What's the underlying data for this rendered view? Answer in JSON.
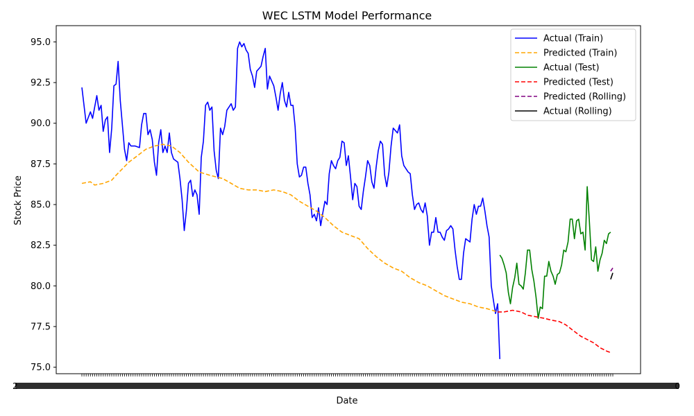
{
  "chart_data": {
    "type": "line",
    "title": "WEC LSTM Model Performance",
    "xlabel": "Date",
    "ylabel": "Stock Price",
    "ylim": [
      74.6,
      96.0
    ],
    "yticks": [
      75.0,
      77.5,
      80.0,
      82.5,
      85.0,
      87.5,
      90.0,
      92.5,
      95.0
    ],
    "x_tick_note": "x-axis tick labels are dense overlapping date strings and are not legible",
    "x_tick_label_left": "2",
    "x_tick_label_right": "0",
    "legend_position": "top-right",
    "grid": false,
    "series": [
      {
        "name": "Actual (Train)",
        "color": "#0000ff",
        "dash": "solid",
        "points": [
          [
            0,
            92.2
          ],
          [
            2,
            90.0
          ],
          [
            4,
            90.7
          ],
          [
            5,
            90.3
          ],
          [
            7,
            91.7
          ],
          [
            8,
            90.8
          ],
          [
            9,
            91.1
          ],
          [
            10,
            89.5
          ],
          [
            11,
            90.2
          ],
          [
            12,
            90.4
          ],
          [
            13,
            88.2
          ],
          [
            14,
            89.7
          ],
          [
            15,
            92.3
          ],
          [
            16,
            92.4
          ],
          [
            17,
            93.8
          ],
          [
            18,
            91.4
          ],
          [
            20,
            88.4
          ],
          [
            21,
            87.7
          ],
          [
            22,
            88.8
          ],
          [
            23,
            88.6
          ],
          [
            25,
            88.6
          ],
          [
            27,
            88.5
          ],
          [
            28,
            89.9
          ],
          [
            29,
            90.6
          ],
          [
            30,
            90.6
          ],
          [
            31,
            89.3
          ],
          [
            32,
            89.6
          ],
          [
            33,
            89.0
          ],
          [
            34,
            87.6
          ],
          [
            35,
            86.8
          ],
          [
            36,
            88.8
          ],
          [
            37,
            89.6
          ],
          [
            38,
            88.2
          ],
          [
            39,
            88.6
          ],
          [
            40,
            88.2
          ],
          [
            41,
            89.4
          ],
          [
            42,
            88.2
          ],
          [
            43,
            87.8
          ],
          [
            45,
            87.6
          ],
          [
            46,
            86.6
          ],
          [
            47,
            85.3
          ],
          [
            48,
            83.4
          ],
          [
            49,
            84.6
          ],
          [
            50,
            86.3
          ],
          [
            51,
            86.5
          ],
          [
            52,
            85.5
          ],
          [
            53,
            85.9
          ],
          [
            54,
            85.6
          ],
          [
            55,
            84.4
          ],
          [
            56,
            87.9
          ],
          [
            57,
            88.9
          ],
          [
            58,
            91.1
          ],
          [
            59,
            91.3
          ],
          [
            60,
            90.8
          ],
          [
            61,
            91.0
          ],
          [
            62,
            88.3
          ],
          [
            63,
            87.1
          ],
          [
            64,
            86.6
          ],
          [
            65,
            89.7
          ],
          [
            66,
            89.3
          ],
          [
            67,
            89.8
          ],
          [
            68,
            90.8
          ],
          [
            69,
            91.0
          ],
          [
            70,
            91.2
          ],
          [
            71,
            90.8
          ],
          [
            72,
            91.0
          ],
          [
            73,
            94.6
          ],
          [
            74,
            95.0
          ],
          [
            75,
            94.7
          ],
          [
            76,
            94.9
          ],
          [
            77,
            94.5
          ],
          [
            78,
            94.3
          ],
          [
            79,
            93.3
          ],
          [
            80,
            92.9
          ],
          [
            81,
            92.2
          ],
          [
            82,
            93.2
          ],
          [
            84,
            93.5
          ],
          [
            85,
            94.1
          ],
          [
            86,
            94.6
          ],
          [
            87,
            92.1
          ],
          [
            88,
            92.9
          ],
          [
            90,
            92.3
          ],
          [
            91,
            91.6
          ],
          [
            92,
            90.8
          ],
          [
            93,
            91.8
          ],
          [
            94,
            92.5
          ],
          [
            95,
            91.4
          ],
          [
            96,
            91.0
          ],
          [
            97,
            91.9
          ],
          [
            98,
            91.1
          ],
          [
            99,
            91.1
          ],
          [
            100,
            89.8
          ],
          [
            101,
            87.5
          ],
          [
            102,
            86.7
          ],
          [
            103,
            86.8
          ],
          [
            104,
            87.3
          ],
          [
            105,
            87.3
          ],
          [
            106,
            86.3
          ],
          [
            107,
            85.6
          ],
          [
            108,
            84.2
          ],
          [
            109,
            84.4
          ],
          [
            110,
            84.0
          ],
          [
            111,
            84.8
          ],
          [
            112,
            83.7
          ],
          [
            113,
            84.5
          ],
          [
            114,
            85.2
          ],
          [
            115,
            85.0
          ],
          [
            116,
            86.9
          ],
          [
            117,
            87.7
          ],
          [
            118,
            87.4
          ],
          [
            119,
            87.2
          ],
          [
            120,
            87.7
          ],
          [
            121,
            87.9
          ],
          [
            122,
            88.9
          ],
          [
            123,
            88.8
          ],
          [
            124,
            87.4
          ],
          [
            125,
            88.0
          ],
          [
            126,
            86.7
          ],
          [
            127,
            85.3
          ],
          [
            128,
            86.3
          ],
          [
            129,
            86.1
          ],
          [
            130,
            84.9
          ],
          [
            131,
            84.7
          ],
          [
            132,
            85.8
          ],
          [
            133,
            86.7
          ],
          [
            134,
            87.7
          ],
          [
            135,
            87.4
          ],
          [
            136,
            86.4
          ],
          [
            137,
            86.0
          ],
          [
            138,
            87.3
          ],
          [
            139,
            88.3
          ],
          [
            140,
            88.9
          ],
          [
            141,
            88.7
          ],
          [
            142,
            86.8
          ],
          [
            143,
            86.1
          ],
          [
            144,
            87.0
          ],
          [
            145,
            88.6
          ],
          [
            146,
            89.7
          ],
          [
            148,
            89.4
          ],
          [
            149,
            89.9
          ],
          [
            150,
            88.0
          ],
          [
            151,
            87.4
          ],
          [
            153,
            87.0
          ],
          [
            154,
            86.9
          ],
          [
            155,
            85.6
          ],
          [
            156,
            84.7
          ],
          [
            157,
            85.0
          ],
          [
            158,
            85.1
          ],
          [
            159,
            84.7
          ],
          [
            160,
            84.5
          ],
          [
            161,
            85.1
          ],
          [
            162,
            84.3
          ],
          [
            163,
            82.5
          ],
          [
            164,
            83.3
          ],
          [
            165,
            83.3
          ],
          [
            166,
            84.2
          ],
          [
            167,
            83.3
          ],
          [
            168,
            83.3
          ],
          [
            169,
            83.0
          ],
          [
            170,
            82.8
          ],
          [
            171,
            83.4
          ],
          [
            172,
            83.5
          ],
          [
            173,
            83.7
          ],
          [
            174,
            83.5
          ],
          [
            175,
            82.2
          ],
          [
            176,
            81.2
          ],
          [
            177,
            80.4
          ],
          [
            178,
            80.4
          ],
          [
            179,
            82.0
          ],
          [
            180,
            82.9
          ],
          [
            181,
            82.8
          ],
          [
            182,
            82.7
          ],
          [
            183,
            84.1
          ],
          [
            184,
            85.0
          ],
          [
            185,
            84.4
          ],
          [
            186,
            84.9
          ],
          [
            187,
            84.9
          ],
          [
            188,
            85.4
          ],
          [
            189,
            84.6
          ],
          [
            190,
            83.7
          ],
          [
            191,
            83.0
          ],
          [
            192,
            80.0
          ],
          [
            193,
            79.1
          ],
          [
            194,
            78.3
          ],
          [
            195,
            78.9
          ],
          [
            196,
            75.5
          ]
        ]
      },
      {
        "name": "Predicted (Train)",
        "color": "#ffa500",
        "dash": "dashed",
        "points": [
          [
            0,
            86.3
          ],
          [
            4,
            86.4
          ],
          [
            6,
            86.2
          ],
          [
            10,
            86.3
          ],
          [
            14,
            86.5
          ],
          [
            16,
            86.8
          ],
          [
            19,
            87.2
          ],
          [
            22,
            87.6
          ],
          [
            26,
            88.0
          ],
          [
            30,
            88.4
          ],
          [
            34,
            88.6
          ],
          [
            38,
            88.7
          ],
          [
            42,
            88.6
          ],
          [
            46,
            88.2
          ],
          [
            50,
            87.6
          ],
          [
            55,
            87.0
          ],
          [
            60,
            86.8
          ],
          [
            66,
            86.6
          ],
          [
            70,
            86.3
          ],
          [
            74,
            86.0
          ],
          [
            78,
            85.9
          ],
          [
            82,
            85.9
          ],
          [
            86,
            85.8
          ],
          [
            90,
            85.9
          ],
          [
            94,
            85.8
          ],
          [
            98,
            85.6
          ],
          [
            102,
            85.2
          ],
          [
            106,
            84.9
          ],
          [
            110,
            84.6
          ],
          [
            114,
            84.2
          ],
          [
            118,
            83.7
          ],
          [
            122,
            83.3
          ],
          [
            126,
            83.1
          ],
          [
            130,
            82.9
          ],
          [
            134,
            82.3
          ],
          [
            138,
            81.8
          ],
          [
            142,
            81.4
          ],
          [
            146,
            81.1
          ],
          [
            150,
            80.9
          ],
          [
            154,
            80.5
          ],
          [
            158,
            80.2
          ],
          [
            162,
            80.0
          ],
          [
            166,
            79.7
          ],
          [
            170,
            79.4
          ],
          [
            174,
            79.2
          ],
          [
            178,
            79.0
          ],
          [
            182,
            78.9
          ],
          [
            186,
            78.7
          ],
          [
            190,
            78.6
          ],
          [
            195,
            78.4
          ]
        ]
      },
      {
        "name": "Actual (Test)",
        "color": "#008000",
        "dash": "solid",
        "points": [
          [
            196,
            81.9
          ],
          [
            197,
            81.7
          ],
          [
            198,
            81.3
          ],
          [
            199,
            80.8
          ],
          [
            200,
            79.6
          ],
          [
            201,
            78.9
          ],
          [
            202,
            79.9
          ],
          [
            203,
            80.5
          ],
          [
            204,
            81.4
          ],
          [
            205,
            80.1
          ],
          [
            206,
            80.0
          ],
          [
            207,
            79.8
          ],
          [
            208,
            80.8
          ],
          [
            209,
            82.2
          ],
          [
            210,
            82.2
          ],
          [
            211,
            81.0
          ],
          [
            212,
            80.3
          ],
          [
            213,
            79.3
          ],
          [
            214,
            78.0
          ],
          [
            215,
            78.7
          ],
          [
            216,
            78.6
          ],
          [
            217,
            80.6
          ],
          [
            218,
            80.6
          ],
          [
            219,
            81.5
          ],
          [
            220,
            80.9
          ],
          [
            221,
            80.6
          ],
          [
            222,
            80.1
          ],
          [
            223,
            80.7
          ],
          [
            224,
            80.8
          ],
          [
            225,
            81.3
          ],
          [
            226,
            82.2
          ],
          [
            227,
            82.1
          ],
          [
            228,
            82.7
          ],
          [
            229,
            84.1
          ],
          [
            230,
            84.1
          ],
          [
            231,
            82.9
          ],
          [
            232,
            84.0
          ],
          [
            233,
            84.1
          ],
          [
            234,
            83.2
          ],
          [
            235,
            83.3
          ],
          [
            236,
            82.2
          ],
          [
            237,
            86.1
          ],
          [
            238,
            84.0
          ],
          [
            239,
            81.6
          ],
          [
            240,
            81.5
          ],
          [
            241,
            82.4
          ],
          [
            242,
            80.9
          ],
          [
            243,
            81.6
          ],
          [
            244,
            82.0
          ],
          [
            245,
            82.8
          ],
          [
            246,
            82.6
          ],
          [
            247,
            83.2
          ],
          [
            248,
            83.3
          ]
        ]
      },
      {
        "name": "Predicted (Test)",
        "color": "#ff0000",
        "dash": "dashed",
        "points": [
          [
            195,
            78.4
          ],
          [
            198,
            78.4
          ],
          [
            202,
            78.5
          ],
          [
            206,
            78.4
          ],
          [
            209,
            78.2
          ],
          [
            213,
            78.1
          ],
          [
            217,
            78.0
          ],
          [
            220,
            77.9
          ],
          [
            224,
            77.8
          ],
          [
            227,
            77.6
          ],
          [
            230,
            77.3
          ],
          [
            234,
            76.9
          ],
          [
            237,
            76.7
          ],
          [
            240,
            76.5
          ],
          [
            243,
            76.2
          ],
          [
            246,
            76.0
          ],
          [
            248,
            75.9
          ]
        ]
      },
      {
        "name": "Predicted (Rolling)",
        "color": "#800080",
        "dash": "dashed",
        "points": [
          [
            248,
            80.9
          ],
          [
            249,
            81.1
          ]
        ]
      },
      {
        "name": "Actual (Rolling)",
        "color": "#000000",
        "dash": "solid",
        "points": [
          [
            248,
            80.4
          ],
          [
            249,
            80.8
          ]
        ]
      }
    ]
  }
}
